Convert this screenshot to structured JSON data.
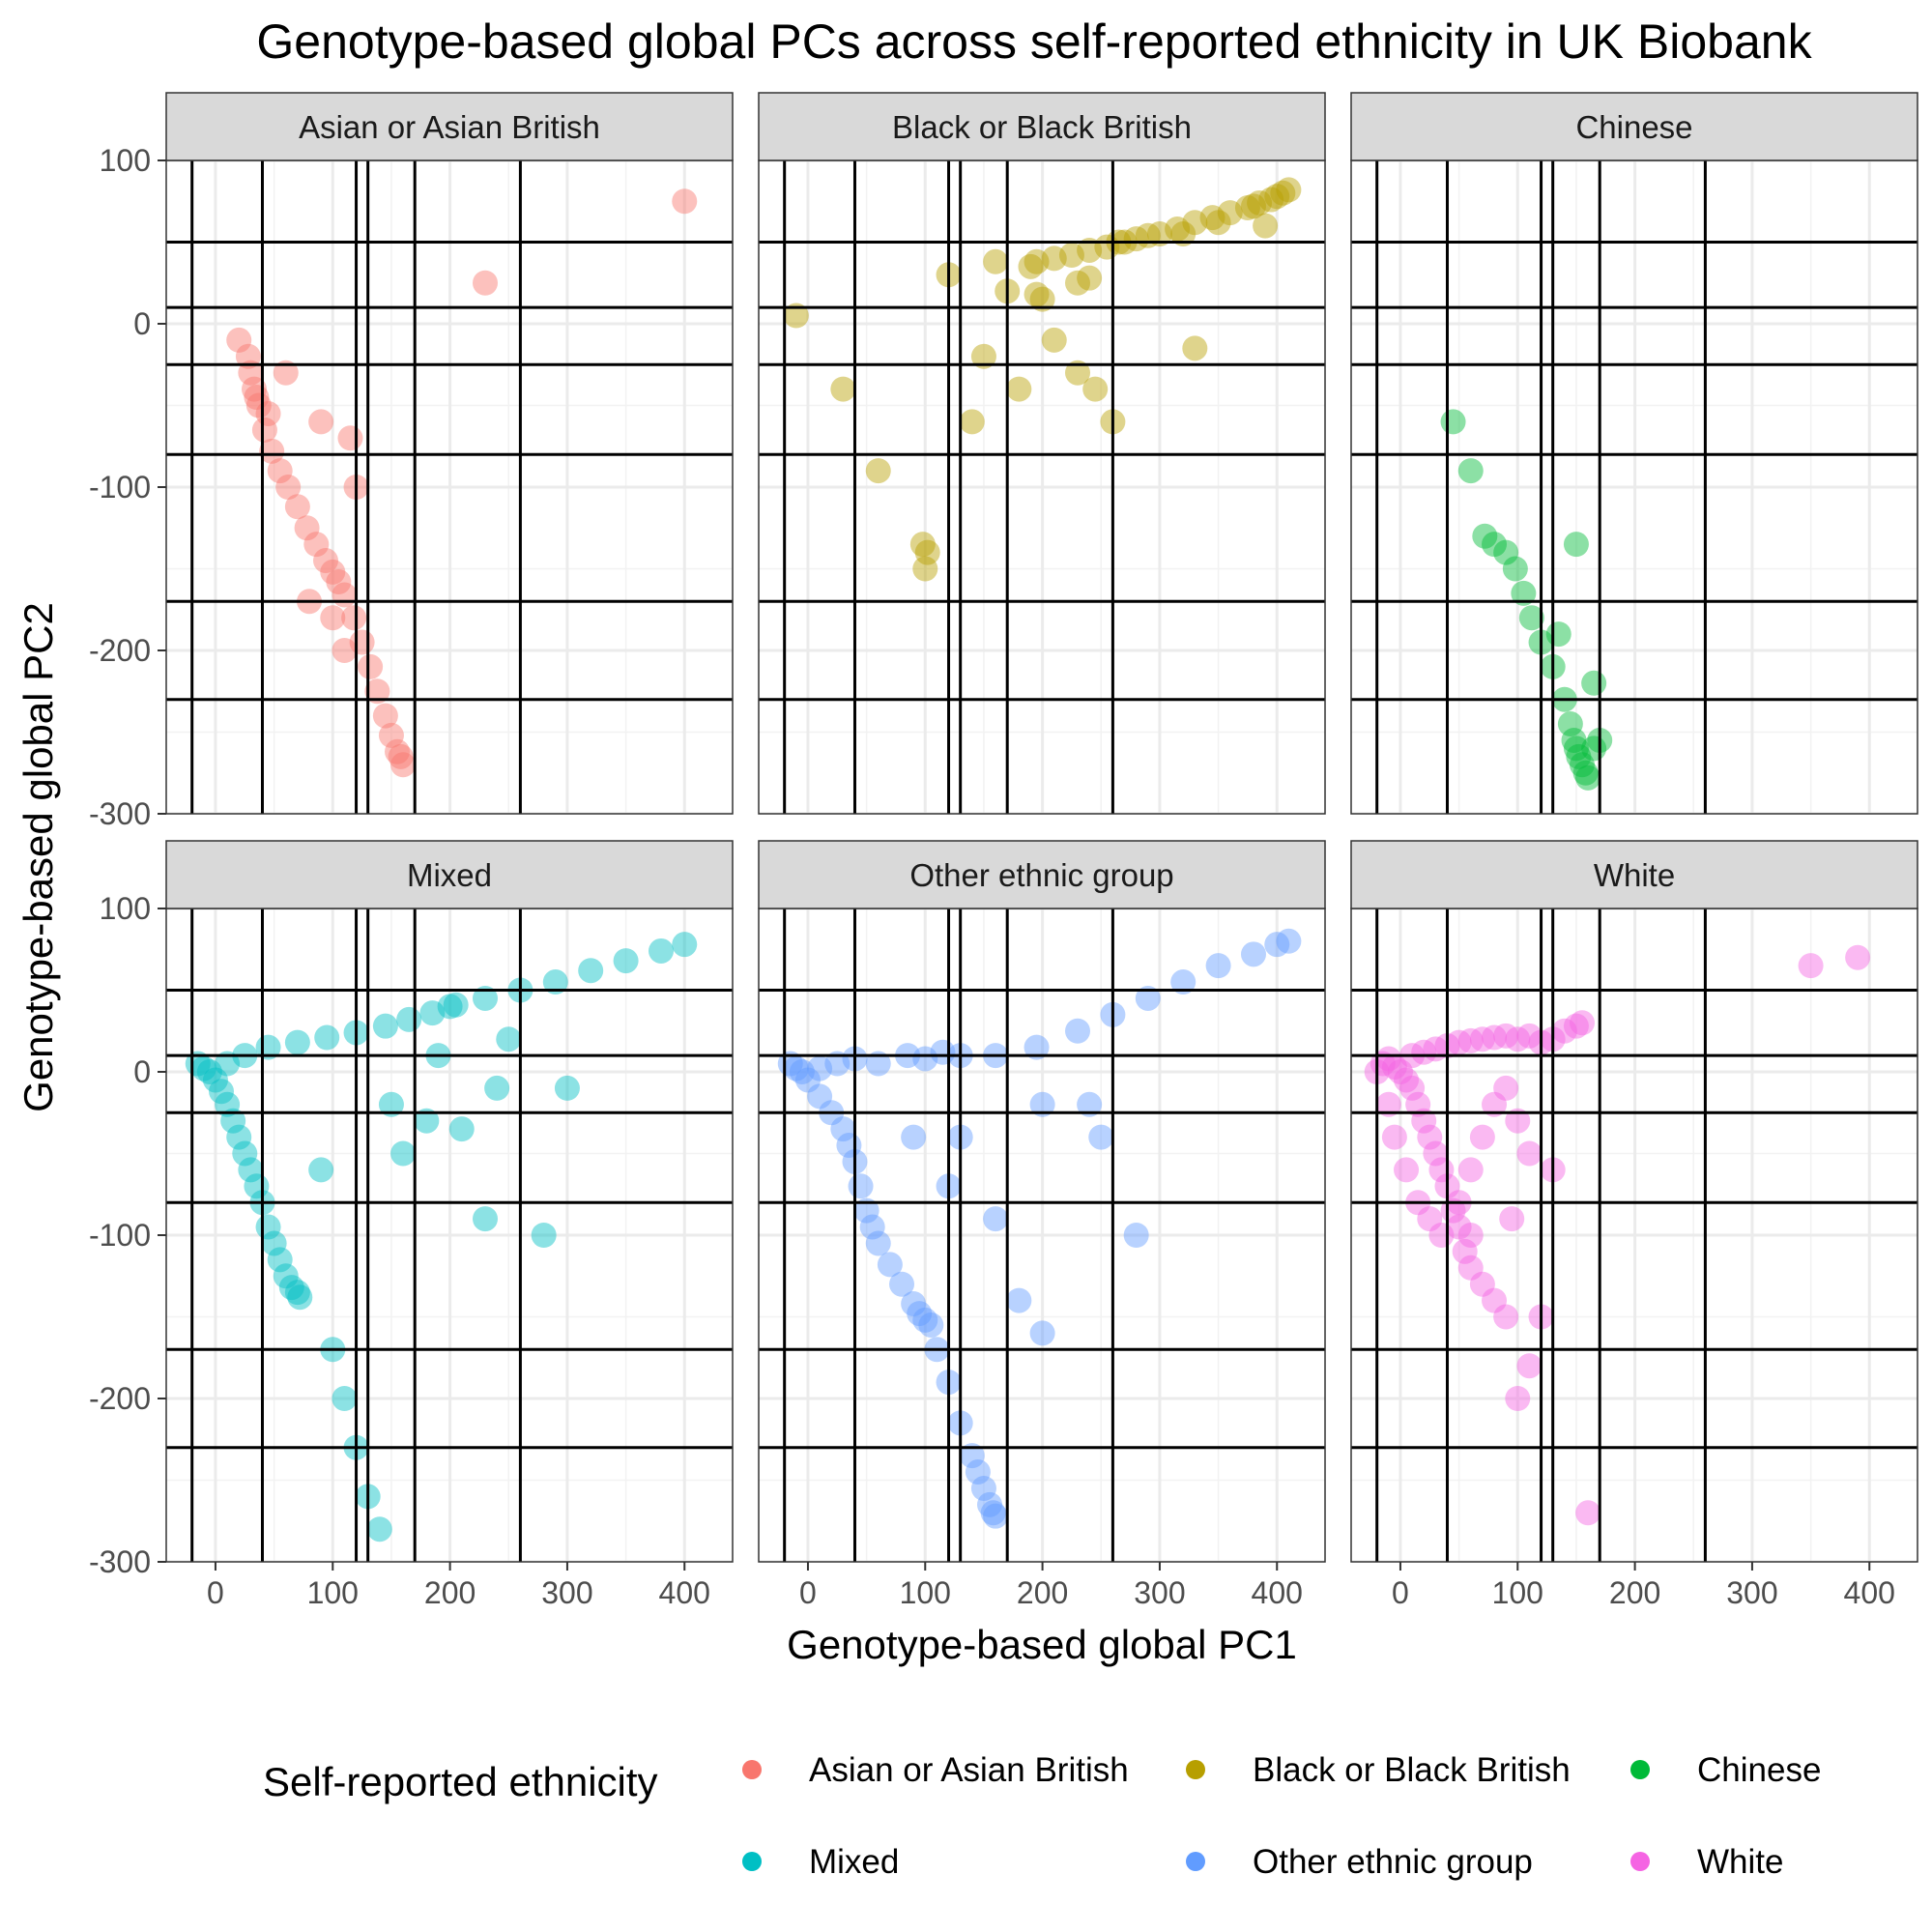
{
  "chart_data": {
    "type": "scatter",
    "title": "Genotype-based global PCs across self-reported ethnicity in UK Biobank",
    "xlabel": "Genotype-based global PC1",
    "ylabel": "Genotype-based global PC2",
    "xlim": [
      -42,
      441
    ],
    "ylim": [
      -300,
      100
    ],
    "xticks": [
      0,
      100,
      200,
      300,
      400
    ],
    "yticks": [
      100,
      0,
      -100,
      -200,
      -300
    ],
    "x_tick_labels": [
      "0",
      "100",
      "200",
      "300",
      "400"
    ],
    "y_tick_labels": [
      "100",
      "0",
      "-100",
      "-200",
      "-300"
    ],
    "grid": true,
    "facet_layout": "2x3",
    "reference_lines": {
      "vertical": [
        -20,
        40,
        120,
        130,
        170,
        260
      ],
      "horizontal": [
        50,
        10,
        -25,
        -80,
        -170,
        -230
      ]
    },
    "legend": {
      "title": "Self-reported ethnicity",
      "placement": "bottom",
      "entries": [
        "Asian or Asian British",
        "Black or Black British",
        "Chinese",
        "Mixed",
        "Other ethnic group",
        "White"
      ]
    },
    "series": [
      {
        "name": "Asian or Asian British",
        "color": "#F8766D",
        "facet": "Asian or Asian British",
        "points": [
          [
            30,
            -30
          ],
          [
            33,
            -40
          ],
          [
            37,
            -50
          ],
          [
            42,
            -65
          ],
          [
            48,
            -78
          ],
          [
            55,
            -90
          ],
          [
            62,
            -100
          ],
          [
            70,
            -112
          ],
          [
            78,
            -125
          ],
          [
            86,
            -135
          ],
          [
            94,
            -145
          ],
          [
            100,
            -152
          ],
          [
            105,
            -158
          ],
          [
            110,
            -166
          ],
          [
            118,
            -180
          ],
          [
            125,
            -195
          ],
          [
            132,
            -210
          ],
          [
            138,
            -225
          ],
          [
            145,
            -240
          ],
          [
            150,
            -252
          ],
          [
            155,
            -262
          ],
          [
            160,
            -270
          ],
          [
            158,
            -265
          ],
          [
            35,
            -45
          ],
          [
            28,
            -20
          ],
          [
            20,
            -10
          ],
          [
            45,
            -55
          ],
          [
            60,
            -30
          ],
          [
            90,
            -60
          ],
          [
            115,
            -70
          ],
          [
            120,
            -100
          ],
          [
            80,
            -170
          ],
          [
            100,
            -180
          ],
          [
            110,
            -200
          ],
          [
            400,
            75
          ],
          [
            230,
            25
          ]
        ]
      },
      {
        "name": "Black or Black British",
        "color": "#B79F00",
        "facet": "Black or Black British",
        "points": [
          [
            405,
            80
          ],
          [
            400,
            78
          ],
          [
            395,
            76
          ],
          [
            385,
            74
          ],
          [
            375,
            71
          ],
          [
            360,
            68
          ],
          [
            345,
            65
          ],
          [
            330,
            62
          ],
          [
            315,
            58
          ],
          [
            300,
            55
          ],
          [
            290,
            54
          ],
          [
            280,
            52
          ],
          [
            270,
            50
          ],
          [
            265,
            50
          ],
          [
            255,
            47
          ],
          [
            240,
            45
          ],
          [
            225,
            42
          ],
          [
            210,
            40
          ],
          [
            195,
            38
          ],
          [
            190,
            35
          ],
          [
            195,
            18
          ],
          [
            200,
            15
          ],
          [
            230,
            25
          ],
          [
            240,
            28
          ],
          [
            320,
            55
          ],
          [
            350,
            62
          ],
          [
            380,
            72
          ],
          [
            410,
            82
          ],
          [
            120,
            30
          ],
          [
            160,
            38
          ],
          [
            170,
            20
          ],
          [
            210,
            -10
          ],
          [
            230,
            -30
          ],
          [
            245,
            -40
          ],
          [
            180,
            -40
          ],
          [
            150,
            -20
          ],
          [
            100,
            -150
          ],
          [
            102,
            -140
          ],
          [
            98,
            -135
          ],
          [
            60,
            -90
          ],
          [
            140,
            -60
          ],
          [
            260,
            -60
          ],
          [
            330,
            -15
          ],
          [
            390,
            60
          ],
          [
            -10,
            5
          ],
          [
            30,
            -40
          ]
        ]
      },
      {
        "name": "Chinese",
        "color": "#00BA38",
        "facet": "Chinese",
        "points": [
          [
            155,
            -270
          ],
          [
            158,
            -275
          ],
          [
            160,
            -278
          ],
          [
            152,
            -265
          ],
          [
            150,
            -260
          ],
          [
            148,
            -255
          ],
          [
            145,
            -245
          ],
          [
            140,
            -230
          ],
          [
            130,
            -210
          ],
          [
            120,
            -195
          ],
          [
            112,
            -180
          ],
          [
            105,
            -165
          ],
          [
            98,
            -150
          ],
          [
            90,
            -140
          ],
          [
            80,
            -135
          ],
          [
            72,
            -130
          ],
          [
            60,
            -90
          ],
          [
            45,
            -60
          ],
          [
            165,
            -260
          ],
          [
            170,
            -255
          ],
          [
            135,
            -190
          ],
          [
            150,
            -135
          ],
          [
            165,
            -220
          ]
        ]
      },
      {
        "name": "Mixed",
        "color": "#00BFC4",
        "facet": "Mixed",
        "points": [
          [
            -15,
            5
          ],
          [
            -10,
            2
          ],
          [
            -5,
            0
          ],
          [
            0,
            -5
          ],
          [
            5,
            -12
          ],
          [
            10,
            -20
          ],
          [
            15,
            -30
          ],
          [
            20,
            -40
          ],
          [
            25,
            -50
          ],
          [
            30,
            -60
          ],
          [
            35,
            -70
          ],
          [
            40,
            -80
          ],
          [
            45,
            -95
          ],
          [
            50,
            -105
          ],
          [
            55,
            -115
          ],
          [
            60,
            -125
          ],
          [
            65,
            -132
          ],
          [
            70,
            -135
          ],
          [
            72,
            -138
          ],
          [
            10,
            5
          ],
          [
            25,
            10
          ],
          [
            45,
            15
          ],
          [
            70,
            18
          ],
          [
            95,
            21
          ],
          [
            120,
            24
          ],
          [
            145,
            28
          ],
          [
            165,
            32
          ],
          [
            185,
            36
          ],
          [
            200,
            40
          ],
          [
            205,
            41
          ],
          [
            230,
            45
          ],
          [
            260,
            50
          ],
          [
            290,
            55
          ],
          [
            320,
            62
          ],
          [
            350,
            68
          ],
          [
            380,
            74
          ],
          [
            400,
            78
          ],
          [
            150,
            -20
          ],
          [
            180,
            -30
          ],
          [
            210,
            -35
          ],
          [
            240,
            -10
          ],
          [
            280,
            -100
          ],
          [
            230,
            -90
          ],
          [
            100,
            -170
          ],
          [
            110,
            -200
          ],
          [
            120,
            -230
          ],
          [
            130,
            -260
          ],
          [
            140,
            -280
          ],
          [
            160,
            -50
          ],
          [
            90,
            -60
          ],
          [
            300,
            -10
          ],
          [
            190,
            10
          ],
          [
            250,
            20
          ]
        ]
      },
      {
        "name": "Other ethnic group",
        "color": "#619CFF",
        "facet": "Other ethnic group",
        "points": [
          [
            -15,
            5
          ],
          [
            -10,
            2
          ],
          [
            -5,
            0
          ],
          [
            0,
            -5
          ],
          [
            10,
            -15
          ],
          [
            20,
            -25
          ],
          [
            30,
            -35
          ],
          [
            35,
            -45
          ],
          [
            40,
            -55
          ],
          [
            45,
            -70
          ],
          [
            50,
            -85
          ],
          [
            55,
            -95
          ],
          [
            60,
            -105
          ],
          [
            70,
            -118
          ],
          [
            80,
            -130
          ],
          [
            90,
            -142
          ],
          [
            95,
            -148
          ],
          [
            100,
            -152
          ],
          [
            105,
            -155
          ],
          [
            110,
            -170
          ],
          [
            120,
            -190
          ],
          [
            130,
            -215
          ],
          [
            140,
            -235
          ],
          [
            145,
            -245
          ],
          [
            150,
            -255
          ],
          [
            155,
            -265
          ],
          [
            158,
            -270
          ],
          [
            160,
            -272
          ],
          [
            10,
            2
          ],
          [
            25,
            5
          ],
          [
            40,
            8
          ],
          [
            60,
            5
          ],
          [
            85,
            10
          ],
          [
            100,
            8
          ],
          [
            115,
            12
          ],
          [
            130,
            10
          ],
          [
            160,
            10
          ],
          [
            195,
            15
          ],
          [
            230,
            25
          ],
          [
            260,
            35
          ],
          [
            290,
            45
          ],
          [
            320,
            55
          ],
          [
            350,
            65
          ],
          [
            380,
            72
          ],
          [
            400,
            78
          ],
          [
            410,
            80
          ],
          [
            200,
            -20
          ],
          [
            240,
            -20
          ],
          [
            250,
            -40
          ],
          [
            280,
            -100
          ],
          [
            160,
            -90
          ],
          [
            120,
            -70
          ],
          [
            90,
            -40
          ],
          [
            180,
            -140
          ],
          [
            200,
            -160
          ],
          [
            130,
            -40
          ]
        ]
      },
      {
        "name": "White",
        "color": "#F564E3",
        "facet": "White",
        "points": [
          [
            -20,
            0
          ],
          [
            -15,
            5
          ],
          [
            -10,
            8
          ],
          [
            -5,
            3
          ],
          [
            0,
            0
          ],
          [
            5,
            -5
          ],
          [
            10,
            -10
          ],
          [
            15,
            -20
          ],
          [
            20,
            -30
          ],
          [
            25,
            -40
          ],
          [
            30,
            -50
          ],
          [
            35,
            -60
          ],
          [
            40,
            -70
          ],
          [
            45,
            -85
          ],
          [
            50,
            -95
          ],
          [
            55,
            -110
          ],
          [
            60,
            -120
          ],
          [
            70,
            -130
          ],
          [
            80,
            -140
          ],
          [
            90,
            -150
          ],
          [
            10,
            10
          ],
          [
            20,
            12
          ],
          [
            30,
            14
          ],
          [
            40,
            16
          ],
          [
            50,
            18
          ],
          [
            60,
            19
          ],
          [
            70,
            20
          ],
          [
            80,
            21
          ],
          [
            90,
            22
          ],
          [
            100,
            20
          ],
          [
            110,
            22
          ],
          [
            120,
            18
          ],
          [
            130,
            20
          ],
          [
            140,
            25
          ],
          [
            150,
            28
          ],
          [
            155,
            30
          ],
          [
            -10,
            -20
          ],
          [
            -5,
            -40
          ],
          [
            5,
            -60
          ],
          [
            15,
            -80
          ],
          [
            25,
            -90
          ],
          [
            35,
            -100
          ],
          [
            50,
            -80
          ],
          [
            60,
            -60
          ],
          [
            70,
            -40
          ],
          [
            80,
            -20
          ],
          [
            90,
            -10
          ],
          [
            100,
            -30
          ],
          [
            110,
            -50
          ],
          [
            95,
            -90
          ],
          [
            60,
            -100
          ],
          [
            100,
            -200
          ],
          [
            110,
            -180
          ],
          [
            160,
            -270
          ],
          [
            350,
            65
          ],
          [
            390,
            70
          ],
          [
            120,
            -150
          ],
          [
            130,
            -60
          ]
        ]
      }
    ]
  },
  "facets": [
    "Asian or Asian British",
    "Black or Black British",
    "Chinese",
    "Mixed",
    "Other ethnic group",
    "White"
  ]
}
